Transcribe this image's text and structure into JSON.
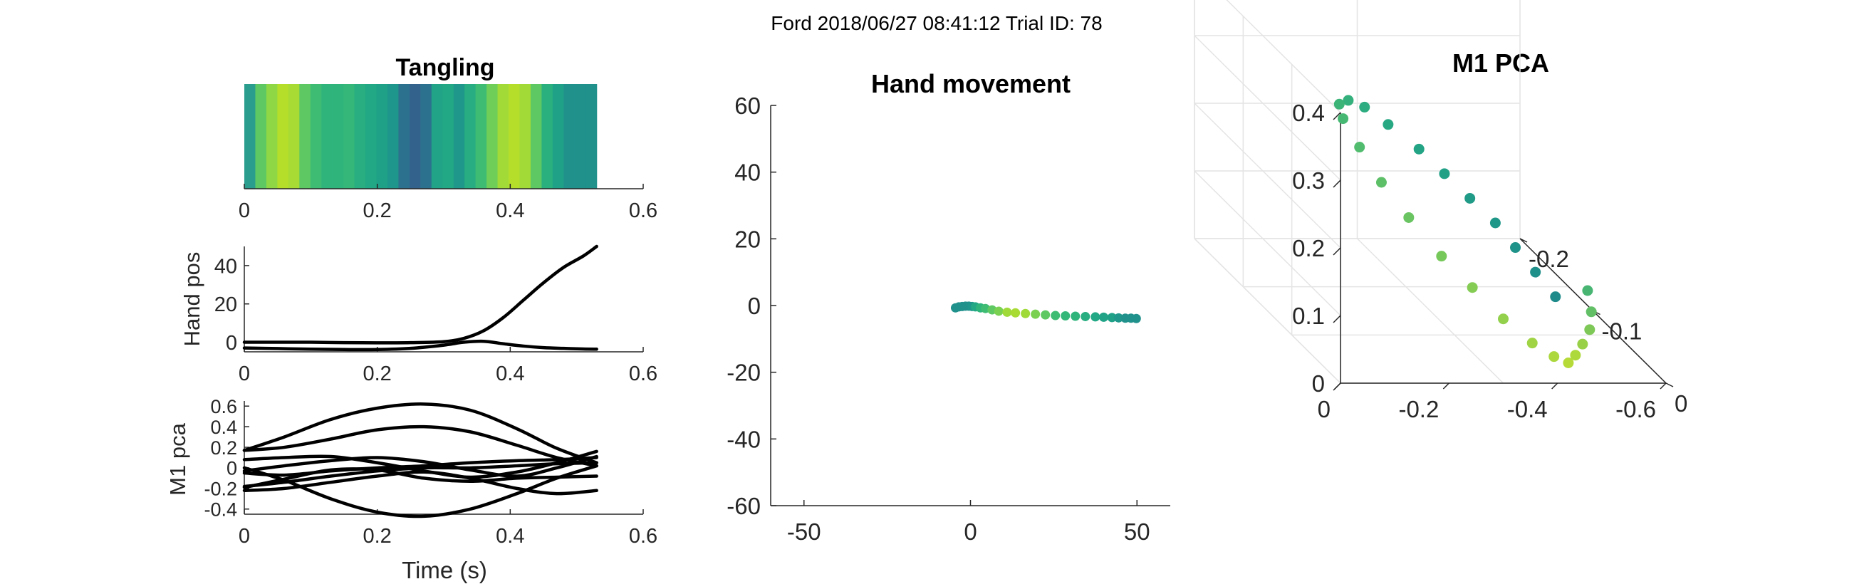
{
  "figure": {
    "suptitle": "Ford 2018/06/27 08:41:12 Trial ID: 78"
  },
  "colors": {
    "background": "#ffffff",
    "axis": "#262626",
    "grid3d": "#e4e4e4",
    "trace": "#000000",
    "colormap": [
      "#3a5e8c",
      "#1f8a8a",
      "#21a585",
      "#5ec962",
      "#a0da39",
      "#c7e020"
    ]
  },
  "chart_data": [
    {
      "id": "tangling",
      "type": "heatmap",
      "title": "Tangling",
      "xlabel": "",
      "ylabel": "",
      "xlim": [
        0,
        0.6
      ],
      "xticks": [
        "0",
        "0.2",
        "0.4",
        "0.6"
      ],
      "x_extent": [
        0,
        0.53
      ],
      "band_colors": [
        "#2a9d8f",
        "#5ec962",
        "#8fd744",
        "#b5de2b",
        "#a8db34",
        "#5ec962",
        "#3fbc73",
        "#2fb47c",
        "#2fb47c",
        "#35b779",
        "#28ae80",
        "#22a884",
        "#1fa187",
        "#1f968b",
        "#2c728e",
        "#33638d",
        "#2c728e",
        "#20a386",
        "#22a884",
        "#1f988b",
        "#27ad81",
        "#3fbc73",
        "#6ece58",
        "#a2da37",
        "#b5de2b",
        "#a2da37",
        "#5ec962",
        "#2ab07f",
        "#1fa187",
        "#21918c",
        "#21918c",
        "#21918c"
      ]
    },
    {
      "id": "hand-pos",
      "type": "line",
      "title": "",
      "xlabel": "",
      "ylabel": "Hand pos",
      "xlim": [
        0,
        0.6
      ],
      "ylim": [
        -5,
        50
      ],
      "xticks": [
        "0",
        "0.2",
        "0.4",
        "0.6"
      ],
      "yticks": [
        "0",
        "20",
        "40"
      ],
      "x": [
        0,
        0.05,
        0.1,
        0.15,
        0.2,
        0.25,
        0.3,
        0.33,
        0.36,
        0.39,
        0.42,
        0.45,
        0.48,
        0.51,
        0.53
      ],
      "series": [
        {
          "values": [
            0,
            0,
            0,
            -0.2,
            -0.3,
            -0.2,
            0.3,
            2,
            6,
            13,
            22,
            31,
            39,
            45,
            50
          ]
        },
        {
          "values": [
            -3,
            -3.3,
            -3.6,
            -3.8,
            -3.8,
            -3.2,
            -1.5,
            0,
            0.5,
            -0.8,
            -2,
            -2.8,
            -3.2,
            -3.5,
            -3.6
          ]
        }
      ]
    },
    {
      "id": "m1-pca",
      "type": "line",
      "title": "",
      "xlabel": "Time (s)",
      "ylabel": "M1 pca",
      "xlim": [
        0,
        0.6
      ],
      "ylim": [
        -0.45,
        0.65
      ],
      "xticks": [
        "0",
        "0.2",
        "0.4",
        "0.6"
      ],
      "yticks": [
        "-0.4",
        "-0.2",
        "0",
        "0.2",
        "0.4",
        "0.6"
      ],
      "x": [
        0,
        0.06,
        0.13,
        0.2,
        0.27,
        0.34,
        0.41,
        0.47,
        0.53
      ],
      "series": [
        {
          "values": [
            0.17,
            0.3,
            0.47,
            0.58,
            0.62,
            0.56,
            0.38,
            0.19,
            0.05
          ]
        },
        {
          "values": [
            0.17,
            0.2,
            0.28,
            0.37,
            0.4,
            0.35,
            0.22,
            0.1,
            0.02
          ]
        },
        {
          "values": [
            0.08,
            0.1,
            0.11,
            0.05,
            -0.03,
            -0.09,
            -0.04,
            0.05,
            0.16
          ]
        },
        {
          "values": [
            -0.03,
            0.02,
            0.07,
            0.1,
            0.06,
            -0.02,
            -0.08,
            0.0,
            0.11
          ]
        },
        {
          "values": [
            -0.05,
            -0.07,
            -0.03,
            0.0,
            0.02,
            0.05,
            0.07,
            0.08,
            0.1
          ]
        },
        {
          "values": [
            -0.18,
            -0.14,
            -0.08,
            -0.03,
            0.0,
            0.0,
            0.02,
            0.04,
            0.05
          ]
        },
        {
          "values": [
            -0.22,
            -0.2,
            -0.14,
            -0.08,
            -0.04,
            -0.1,
            -0.2,
            -0.25,
            -0.22
          ]
        },
        {
          "values": [
            -0.19,
            -0.11,
            -0.02,
            -0.02,
            -0.1,
            -0.13,
            -0.1,
            -0.09,
            -0.08
          ]
        },
        {
          "values": [
            0.0,
            -0.12,
            -0.3,
            -0.43,
            -0.47,
            -0.4,
            -0.25,
            -0.1,
            0.02
          ]
        }
      ]
    },
    {
      "id": "hand-movement",
      "type": "scatter",
      "title": "Hand movement",
      "xlabel": "",
      "ylabel": "",
      "xlim": [
        -60,
        60
      ],
      "ylim": [
        -60,
        60
      ],
      "xticks": [
        "-50",
        "0",
        "50"
      ],
      "yticks": [
        "-60",
        "-40",
        "-20",
        "0",
        "20",
        "40",
        "60"
      ],
      "points": [
        {
          "x": -4.5,
          "y": -0.7,
          "c": "#21918c"
        },
        {
          "x": -3.5,
          "y": -0.4,
          "c": "#21918c"
        },
        {
          "x": -2.5,
          "y": -0.3,
          "c": "#21918c"
        },
        {
          "x": -1.5,
          "y": -0.2,
          "c": "#21918c"
        },
        {
          "x": -0.5,
          "y": -0.2,
          "c": "#21918c"
        },
        {
          "x": 0.5,
          "y": -0.3,
          "c": "#1f968b"
        },
        {
          "x": 1.5,
          "y": -0.4,
          "c": "#22a884"
        },
        {
          "x": 3,
          "y": -0.7,
          "c": "#2fb47c"
        },
        {
          "x": 4.5,
          "y": -0.9,
          "c": "#3fbc73"
        },
        {
          "x": 6.5,
          "y": -1.3,
          "c": "#5ec962"
        },
        {
          "x": 8.5,
          "y": -1.7,
          "c": "#7ad151"
        },
        {
          "x": 11,
          "y": -2,
          "c": "#a0da39"
        },
        {
          "x": 13.5,
          "y": -2.2,
          "c": "#a8db34"
        },
        {
          "x": 16.5,
          "y": -2.4,
          "c": "#a0da39"
        },
        {
          "x": 19.5,
          "y": -2.6,
          "c": "#7ad151"
        },
        {
          "x": 22.5,
          "y": -2.8,
          "c": "#5ec962"
        },
        {
          "x": 25.5,
          "y": -3,
          "c": "#3fbc73"
        },
        {
          "x": 28.5,
          "y": -3.1,
          "c": "#35b779"
        },
        {
          "x": 31.5,
          "y": -3.2,
          "c": "#2fb47c"
        },
        {
          "x": 34.5,
          "y": -3.3,
          "c": "#28ae80"
        },
        {
          "x": 37.5,
          "y": -3.4,
          "c": "#22a884"
        },
        {
          "x": 40,
          "y": -3.5,
          "c": "#20a386"
        },
        {
          "x": 42.5,
          "y": -3.6,
          "c": "#1fa187"
        },
        {
          "x": 44.5,
          "y": -3.7,
          "c": "#1f988b"
        },
        {
          "x": 46.5,
          "y": -3.8,
          "c": "#21918c"
        },
        {
          "x": 48.2,
          "y": -3.8,
          "c": "#21918c"
        },
        {
          "x": 49.8,
          "y": -3.9,
          "c": "#21918c"
        }
      ]
    },
    {
      "id": "m1-pca-3d",
      "type": "scatter",
      "title": "M1 PCA",
      "xlabel": "",
      "ylabel": "",
      "zlabel": "",
      "xlim": [
        -0.2,
        0
      ],
      "ylim": [
        -0.6,
        0
      ],
      "zlim": [
        0,
        0.4
      ],
      "xticks": [
        "-0.2",
        "-0.1",
        "0"
      ],
      "yticks": [
        "-0.6",
        "-0.4",
        "-0.2",
        "0"
      ],
      "zticks": [
        "0",
        "0.1",
        "0.2",
        "0.3",
        "0.4"
      ],
      "grid": true,
      "points": [
        {
          "x": -0.04,
          "y": -0.45,
          "z": 0.085,
          "c": "#1f8a8a"
        },
        {
          "x": -0.06,
          "y": -0.44,
          "z": 0.1,
          "c": "#1f8f8a"
        },
        {
          "x": -0.08,
          "y": -0.43,
          "z": 0.115,
          "c": "#1f9389"
        },
        {
          "x": -0.1,
          "y": -0.42,
          "z": 0.13,
          "c": "#1f9788"
        },
        {
          "x": -0.12,
          "y": -0.4,
          "z": 0.145,
          "c": "#209b87"
        },
        {
          "x": -0.14,
          "y": -0.38,
          "z": 0.16,
          "c": "#21a086"
        },
        {
          "x": -0.16,
          "y": -0.36,
          "z": 0.175,
          "c": "#23a485"
        },
        {
          "x": -0.18,
          "y": -0.33,
          "z": 0.19,
          "c": "#27a883"
        },
        {
          "x": -0.19,
          "y": -0.3,
          "z": 0.205,
          "c": "#2cac80"
        },
        {
          "x": -0.19,
          "y": -0.27,
          "z": 0.215,
          "c": "#34b07c"
        },
        {
          "x": -0.18,
          "y": -0.24,
          "z": 0.22,
          "c": "#3cb478"
        },
        {
          "x": -0.16,
          "y": -0.22,
          "z": 0.22,
          "c": "#46b873"
        },
        {
          "x": -0.13,
          "y": -0.21,
          "z": 0.21,
          "c": "#51bc6e"
        },
        {
          "x": -0.1,
          "y": -0.21,
          "z": 0.19,
          "c": "#5dc068"
        },
        {
          "x": -0.07,
          "y": -0.22,
          "z": 0.17,
          "c": "#6ac462"
        },
        {
          "x": -0.04,
          "y": -0.24,
          "z": 0.145,
          "c": "#77c85b"
        },
        {
          "x": -0.02,
          "y": -0.27,
          "z": 0.12,
          "c": "#85cc54"
        },
        {
          "x": 0.0,
          "y": -0.3,
          "z": 0.095,
          "c": "#93d04c"
        },
        {
          "x": 0.01,
          "y": -0.34,
          "z": 0.07,
          "c": "#a0d445"
        },
        {
          "x": 0.01,
          "y": -0.38,
          "z": 0.05,
          "c": "#acd83e"
        },
        {
          "x": 0.0,
          "y": -0.42,
          "z": 0.03,
          "c": "#b6db38"
        },
        {
          "x": -0.02,
          "y": -0.46,
          "z": 0.02,
          "c": "#aed93c"
        },
        {
          "x": -0.04,
          "y": -0.5,
          "z": 0.015,
          "c": "#98d148"
        },
        {
          "x": -0.06,
          "y": -0.54,
          "z": 0.015,
          "c": "#7ec857"
        },
        {
          "x": -0.08,
          "y": -0.57,
          "z": 0.02,
          "c": "#62bf66"
        },
        {
          "x": -0.1,
          "y": -0.59,
          "z": 0.03,
          "c": "#48b573"
        }
      ]
    }
  ]
}
